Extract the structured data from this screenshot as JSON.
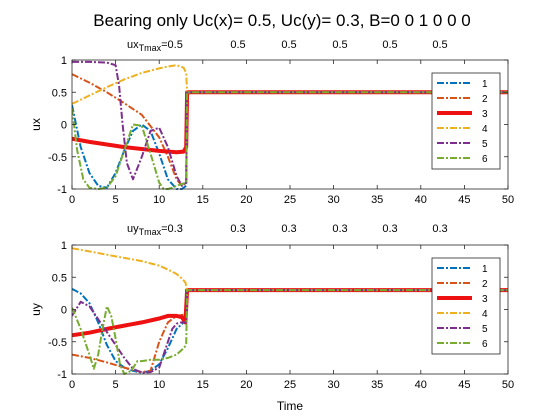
{
  "figure": {
    "title": "Bearing only   Uc(x)= 0.5, Uc(y)= 0.3, B=0  0  1  0  0  0"
  },
  "annotations": {
    "top": {
      "prefix": "ux",
      "sub": "Tmax",
      "suffix": "=0.5",
      "values": [
        "0.5",
        "0.5",
        "0.5",
        "0.5",
        "0.5"
      ]
    },
    "bottom": {
      "prefix": "uy",
      "sub": "Tmax",
      "suffix": "=0.3",
      "values": [
        "0.3",
        "0.3",
        "0.3",
        "0.3",
        "0.3"
      ]
    }
  },
  "legend_labels": [
    "1",
    "2",
    "3",
    "4",
    "5",
    "6"
  ],
  "series_style": [
    {
      "color": "#0072BD",
      "dash": "7,2,2,2",
      "width": 2
    },
    {
      "color": "#D95319",
      "dash": "7,2,2,2",
      "width": 2
    },
    {
      "color": "#EE1111",
      "dash": "",
      "width": 4
    },
    {
      "color": "#EDB120",
      "dash": "7,2,2,2",
      "width": 2
    },
    {
      "color": "#7E2F8E",
      "dash": "7,2,2,2",
      "width": 2
    },
    {
      "color": "#77AC30",
      "dash": "7,2,2,2",
      "width": 2
    }
  ],
  "chart_data": [
    {
      "type": "line",
      "xlabel": "",
      "ylabel": "ux",
      "xlim": [
        0,
        50
      ],
      "ylim": [
        -1,
        1
      ],
      "xticks": [
        0,
        5,
        10,
        15,
        20,
        25,
        30,
        35,
        40,
        45,
        50
      ],
      "yticks": [
        -1,
        -0.5,
        0,
        0.5,
        1
      ],
      "ytick_labels": [
        "-1",
        "-0.5",
        "0",
        "0.5",
        "1"
      ],
      "legend": "top-right",
      "series": [
        {
          "name": "1",
          "x": [
            0,
            1,
            2,
            3,
            4,
            5,
            6,
            7,
            8,
            9,
            10,
            11,
            12,
            12.6,
            13.1,
            13.2,
            13.4,
            20,
            30,
            40,
            50
          ],
          "y": [
            0.3,
            -0.35,
            -0.75,
            -0.95,
            -0.98,
            -0.75,
            -0.4,
            -0.1,
            0.0,
            -0.1,
            -0.45,
            -0.85,
            -1.0,
            -1.0,
            -0.95,
            0.5,
            0.5,
            0.5,
            0.5,
            0.5,
            0.5
          ]
        },
        {
          "name": "2",
          "x": [
            0,
            2,
            4,
            6,
            8,
            10,
            11,
            12,
            12.6,
            13.1,
            13.2,
            13.4,
            20,
            30,
            40,
            50
          ],
          "y": [
            0.78,
            0.65,
            0.5,
            0.33,
            0.15,
            -0.2,
            -0.5,
            -0.85,
            -0.95,
            -0.9,
            0.5,
            0.5,
            0.5,
            0.5,
            0.5,
            0.5
          ]
        },
        {
          "name": "3",
          "x": [
            0,
            2,
            4,
            6,
            8,
            10,
            12,
            12.8,
            13.1,
            13.2,
            13.4,
            20,
            30,
            40,
            50
          ],
          "y": [
            -0.22,
            -0.27,
            -0.31,
            -0.35,
            -0.38,
            -0.41,
            -0.43,
            -0.42,
            -0.35,
            0.5,
            0.5,
            0.5,
            0.5,
            0.5,
            0.5
          ]
        },
        {
          "name": "4",
          "x": [
            0,
            2,
            4,
            6,
            8,
            10,
            11,
            12,
            12.8,
            13.1,
            13.2,
            13.4,
            20,
            30,
            40,
            50
          ],
          "y": [
            0.32,
            0.45,
            0.58,
            0.7,
            0.8,
            0.87,
            0.9,
            0.92,
            0.88,
            0.8,
            0.5,
            0.5,
            0.5,
            0.5,
            0.5,
            0.5
          ]
        },
        {
          "name": "5",
          "x": [
            0,
            2,
            4,
            5,
            5.4,
            5.8,
            6.3,
            7,
            8,
            9,
            10,
            11,
            12,
            12.6,
            13.1,
            13.2,
            13.4,
            20,
            30,
            40,
            50
          ],
          "y": [
            0.97,
            0.97,
            0.96,
            0.92,
            0.6,
            0.0,
            -0.6,
            -0.85,
            -0.5,
            -0.1,
            -0.05,
            -0.35,
            -0.8,
            -0.95,
            -0.9,
            0.5,
            0.5,
            0.5,
            0.5,
            0.5,
            0.5
          ]
        },
        {
          "name": "6",
          "x": [
            0,
            0.6,
            1.3,
            2,
            3,
            4,
            5,
            6,
            7,
            8,
            9,
            10,
            10.5,
            11,
            11.5,
            12,
            13.1,
            13.2,
            13.4,
            20,
            30,
            40,
            50
          ],
          "y": [
            0.25,
            -0.4,
            -0.85,
            -0.98,
            -1.0,
            -0.98,
            -0.8,
            -0.4,
            0.0,
            -0.02,
            -0.45,
            -0.9,
            -1.0,
            -1.0,
            -0.98,
            -0.95,
            -0.9,
            0.5,
            0.5,
            0.5,
            0.5,
            0.5,
            0.5
          ]
        }
      ]
    },
    {
      "type": "line",
      "xlabel": "Time",
      "ylabel": "uy",
      "xlim": [
        0,
        50
      ],
      "ylim": [
        -1,
        1
      ],
      "xticks": [
        0,
        5,
        10,
        15,
        20,
        25,
        30,
        35,
        40,
        45,
        50
      ],
      "yticks": [
        -1,
        -0.5,
        0,
        0.5,
        1
      ],
      "ytick_labels": [
        "-1",
        "-0.5",
        "0",
        "0.5",
        "1"
      ],
      "legend": "top-right",
      "series": [
        {
          "name": "1",
          "x": [
            0,
            1,
            2,
            3,
            4,
            5,
            6,
            7,
            8,
            9,
            10,
            11,
            12,
            12.8,
            13.1,
            13.2,
            13.4,
            20,
            30,
            40,
            50
          ],
          "y": [
            0.32,
            0.25,
            0.1,
            -0.2,
            -0.55,
            -0.8,
            -0.9,
            -0.95,
            -0.98,
            -0.95,
            -0.85,
            -0.6,
            -0.3,
            -0.2,
            -0.15,
            0.3,
            0.3,
            0.3,
            0.3,
            0.3,
            0.3
          ]
        },
        {
          "name": "2",
          "x": [
            0,
            2,
            4,
            6,
            8,
            9,
            10,
            11,
            12,
            12.8,
            13.1,
            13.2,
            13.4,
            20,
            30,
            40,
            50
          ],
          "y": [
            -0.7,
            -0.75,
            -0.82,
            -0.9,
            -0.97,
            -0.95,
            -0.5,
            -0.2,
            -0.1,
            -0.08,
            -0.05,
            0.3,
            0.3,
            0.3,
            0.3,
            0.3,
            0.3
          ]
        },
        {
          "name": "3",
          "x": [
            0,
            2,
            4,
            6,
            8,
            10,
            11,
            12,
            12.6,
            13.0,
            13.2,
            13.4,
            20,
            30,
            40,
            50
          ],
          "y": [
            -0.4,
            -0.36,
            -0.3,
            -0.25,
            -0.2,
            -0.14,
            -0.1,
            -0.1,
            -0.12,
            -0.2,
            0.3,
            0.3,
            0.3,
            0.3,
            0.3,
            0.3
          ]
        },
        {
          "name": "4",
          "x": [
            0,
            2,
            4,
            6,
            8,
            10,
            11,
            12,
            12.6,
            13.0,
            13.2,
            13.4,
            20,
            30,
            40,
            50
          ],
          "y": [
            0.95,
            0.9,
            0.85,
            0.8,
            0.75,
            0.68,
            0.62,
            0.55,
            0.48,
            0.42,
            0.3,
            0.3,
            0.3,
            0.3,
            0.3,
            0.3
          ]
        },
        {
          "name": "5",
          "x": [
            0,
            1,
            2,
            3,
            4,
            5,
            6,
            7,
            8,
            9,
            10,
            11,
            11.5,
            12,
            12.5,
            13.1,
            13.2,
            13.4,
            20,
            30,
            40,
            50
          ],
          "y": [
            -0.1,
            0.12,
            0.05,
            -0.15,
            -0.35,
            -0.55,
            -0.75,
            -0.92,
            -0.98,
            -0.97,
            -0.9,
            -0.5,
            -0.3,
            -0.22,
            -0.2,
            -0.2,
            0.3,
            0.3,
            0.3,
            0.3,
            0.3,
            0.3
          ]
        },
        {
          "name": "6",
          "x": [
            0,
            1,
            2,
            2.5,
            3,
            3.5,
            4,
            4.5,
            5,
            5.5,
            6,
            6.8,
            7.5,
            8,
            9,
            10,
            11,
            12,
            12.8,
            13.1,
            13.2,
            13.4,
            20,
            30,
            40,
            50
          ],
          "y": [
            0.03,
            -0.3,
            -0.7,
            -0.92,
            -0.7,
            -0.3,
            0.05,
            -0.1,
            -0.45,
            -0.85,
            -1.0,
            -0.95,
            -0.8,
            -0.8,
            -0.78,
            -0.78,
            -0.75,
            -0.7,
            -0.6,
            -0.55,
            0.3,
            0.3,
            0.3,
            0.3,
            0.3,
            0.3
          ]
        }
      ]
    }
  ]
}
